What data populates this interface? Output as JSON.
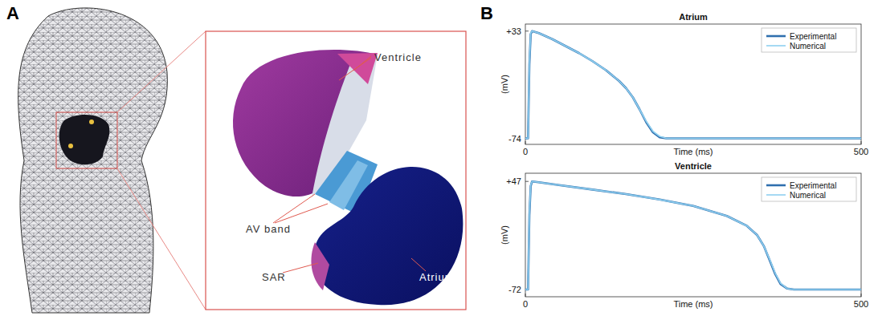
{
  "panel_labels": [
    "A",
    "B"
  ],
  "diagram": {
    "labels": [
      "Ventricle",
      "AV band",
      "SAR",
      "Atrium"
    ]
  },
  "chart_data": [
    {
      "type": "line",
      "title": "Atrium",
      "x_label": "Time (ms)",
      "y_label": "(mV)",
      "x": [
        0,
        4,
        6,
        8,
        10,
        20,
        40,
        60,
        80,
        100,
        120,
        140,
        150,
        160,
        170,
        180,
        190,
        200,
        210,
        300,
        400,
        500
      ],
      "series": [
        {
          "name": "Experimental",
          "color": "#2f6fae",
          "values": [
            -74,
            -74,
            0,
            30,
            33,
            31,
            25,
            18,
            11,
            3,
            -6,
            -17,
            -24,
            -33,
            -45,
            -58,
            -68,
            -73,
            -74,
            -74,
            -74,
            -74
          ]
        },
        {
          "name": "Numerical",
          "color": "#8fd0f0",
          "values": [
            -74,
            -74,
            2,
            31,
            33,
            31,
            25,
            18,
            11,
            3,
            -6,
            -17,
            -24,
            -33,
            -45,
            -57,
            -67,
            -72,
            -74,
            -74,
            -74,
            -74
          ]
        }
      ],
      "xlim": [
        0,
        500
      ],
      "xticks": [
        0,
        500
      ],
      "ylim": [
        -80,
        40
      ],
      "yticks": [
        -74,
        {
          "value": 33,
          "label": "+33"
        }
      ],
      "legend": "upper right"
    },
    {
      "type": "line",
      "title": "Ventricle",
      "x_label": "Time (ms)",
      "y_label": "(mV)",
      "x": [
        0,
        4,
        6,
        8,
        10,
        20,
        50,
        100,
        150,
        200,
        250,
        300,
        330,
        345,
        355,
        365,
        372,
        380,
        390,
        400,
        450,
        500
      ],
      "series": [
        {
          "name": "Experimental",
          "color": "#2f6fae",
          "values": [
            -72,
            -72,
            10,
            42,
            47,
            46,
            43,
            38,
            33,
            27,
            20,
            9,
            -2,
            -12,
            -24,
            -42,
            -55,
            -66,
            -71,
            -72,
            -72,
            -72
          ]
        },
        {
          "name": "Numerical",
          "color": "#8fd0f0",
          "values": [
            -72,
            -72,
            12,
            43,
            47,
            46,
            43,
            38,
            33,
            27,
            20,
            9,
            -2,
            -12,
            -24,
            -41,
            -54,
            -65,
            -71,
            -72,
            -72,
            -72
          ]
        }
      ],
      "xlim": [
        0,
        500
      ],
      "xticks": [
        0,
        500
      ],
      "ylim": [
        -80,
        56
      ],
      "yticks": [
        -72,
        {
          "value": 47,
          "label": "+47"
        }
      ],
      "legend": "upper right"
    }
  ]
}
